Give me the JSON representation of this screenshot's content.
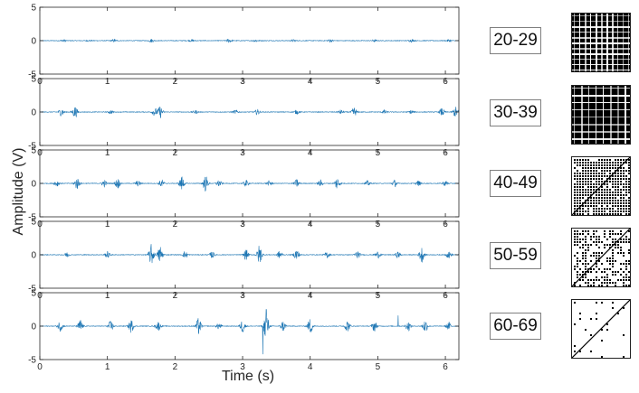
{
  "chart_data": {
    "type": "line",
    "xlabel": "Time (s)",
    "ylabel": "Amplitude (V)",
    "xlim": [
      0,
      6.2
    ],
    "ylim": [
      -5,
      5
    ],
    "xticks": [
      0,
      1,
      2,
      3,
      4,
      5,
      6
    ],
    "yticks": [
      -5,
      0,
      5
    ],
    "grid": false,
    "line_color": "#1f77b4",
    "panels": [
      {
        "label": "20-29",
        "bursts": [
          {
            "t": 0.35,
            "a": 0.15
          },
          {
            "t": 0.72,
            "a": 0.1
          },
          {
            "t": 1.1,
            "a": 0.2
          },
          {
            "t": 1.65,
            "a": 0.25
          },
          {
            "t": 2.25,
            "a": 0.15
          },
          {
            "t": 2.8,
            "a": 0.3
          },
          {
            "t": 3.2,
            "a": 0.2
          },
          {
            "t": 3.75,
            "a": 0.15
          },
          {
            "t": 4.3,
            "a": 0.2
          },
          {
            "t": 4.95,
            "a": 0.15
          },
          {
            "t": 5.5,
            "a": 0.2
          },
          {
            "t": 6.05,
            "a": 0.15
          }
        ],
        "recurrence": {
          "density": 0.85,
          "diagonal": false,
          "spacing": 6,
          "size": 1
        }
      },
      {
        "label": "30-39",
        "bursts": [
          {
            "t": 0.32,
            "a": 0.6
          },
          {
            "t": 0.52,
            "a": 0.9
          },
          {
            "t": 1.05,
            "a": 0.25
          },
          {
            "t": 1.7,
            "a": 0.6
          },
          {
            "t": 1.78,
            "a": 0.9
          },
          {
            "t": 2.3,
            "a": 0.25
          },
          {
            "t": 2.9,
            "a": 0.3
          },
          {
            "t": 3.22,
            "a": 0.4
          },
          {
            "t": 3.8,
            "a": 0.3
          },
          {
            "t": 4.45,
            "a": 0.3
          },
          {
            "t": 4.65,
            "a": 0.7
          },
          {
            "t": 5.1,
            "a": 0.3
          },
          {
            "t": 5.5,
            "a": 0.3
          },
          {
            "t": 5.95,
            "a": 0.6
          },
          {
            "t": 6.15,
            "a": 0.8
          }
        ],
        "recurrence": {
          "density": 0.8,
          "diagonal": false,
          "spacing": 8,
          "size": 1
        }
      },
      {
        "label": "40-49",
        "bursts": [
          {
            "t": 0.25,
            "a": 0.5
          },
          {
            "t": 0.55,
            "a": 0.9
          },
          {
            "t": 0.95,
            "a": 0.5
          },
          {
            "t": 1.15,
            "a": 0.8
          },
          {
            "t": 1.45,
            "a": 0.4
          },
          {
            "t": 1.8,
            "a": 0.6
          },
          {
            "t": 2.1,
            "a": 1.1
          },
          {
            "t": 2.45,
            "a": 1.2
          },
          {
            "t": 2.65,
            "a": 0.5
          },
          {
            "t": 3.05,
            "a": 0.5
          },
          {
            "t": 3.4,
            "a": 0.4
          },
          {
            "t": 3.8,
            "a": 0.6
          },
          {
            "t": 4.15,
            "a": 0.5
          },
          {
            "t": 4.4,
            "a": 0.9
          },
          {
            "t": 4.85,
            "a": 0.4
          },
          {
            "t": 5.25,
            "a": 0.5
          },
          {
            "t": 5.6,
            "a": 0.4
          },
          {
            "t": 6.0,
            "a": 0.4
          }
        ],
        "recurrence": {
          "density": 0.55,
          "diagonal": true,
          "spacing": 6,
          "size": 2
        }
      },
      {
        "label": "50-59",
        "bursts": [
          {
            "t": 0.4,
            "a": 0.4
          },
          {
            "t": 1.0,
            "a": 0.5
          },
          {
            "t": 1.65,
            "a": 1.6
          },
          {
            "t": 1.78,
            "a": 1.4
          },
          {
            "t": 2.15,
            "a": 0.5
          },
          {
            "t": 2.55,
            "a": 0.5
          },
          {
            "t": 3.05,
            "a": 0.8
          },
          {
            "t": 3.25,
            "a": 1.5
          },
          {
            "t": 3.55,
            "a": 0.6
          },
          {
            "t": 3.8,
            "a": 0.9
          },
          {
            "t": 4.25,
            "a": 0.5
          },
          {
            "t": 4.7,
            "a": 0.6
          },
          {
            "t": 5.0,
            "a": 0.5
          },
          {
            "t": 5.3,
            "a": 0.5
          },
          {
            "t": 5.65,
            "a": 1.2
          },
          {
            "t": 6.05,
            "a": 0.5
          }
        ],
        "recurrence": {
          "density": 0.35,
          "diagonal": true,
          "spacing": 6,
          "size": 2
        }
      },
      {
        "label": "60-69",
        "bursts": [
          {
            "t": 0.3,
            "a": 0.8
          },
          {
            "t": 0.6,
            "a": 1.0
          },
          {
            "t": 1.05,
            "a": 0.8
          },
          {
            "t": 1.35,
            "a": 1.0
          },
          {
            "t": 1.75,
            "a": 0.7
          },
          {
            "t": 2.35,
            "a": 1.3
          },
          {
            "t": 2.65,
            "a": 0.5
          },
          {
            "t": 3.0,
            "a": 1.0
          },
          {
            "t": 3.35,
            "a": 2.0
          },
          {
            "t": 3.6,
            "a": 0.8
          },
          {
            "t": 4.0,
            "a": 1.2
          },
          {
            "t": 4.55,
            "a": 0.9
          },
          {
            "t": 4.95,
            "a": 0.8
          },
          {
            "t": 5.45,
            "a": 0.7
          },
          {
            "t": 5.7,
            "a": 1.0
          },
          {
            "t": 6.05,
            "a": 0.6
          }
        ],
        "spikes": [
          {
            "t": 3.3,
            "a": -4.2
          },
          {
            "t": 3.35,
            "a": 2.5
          },
          {
            "t": 5.3,
            "a": 1.6
          }
        ],
        "recurrence": {
          "density": 0.12,
          "diagonal": true,
          "spacing": 12,
          "size": 2
        }
      }
    ]
  }
}
